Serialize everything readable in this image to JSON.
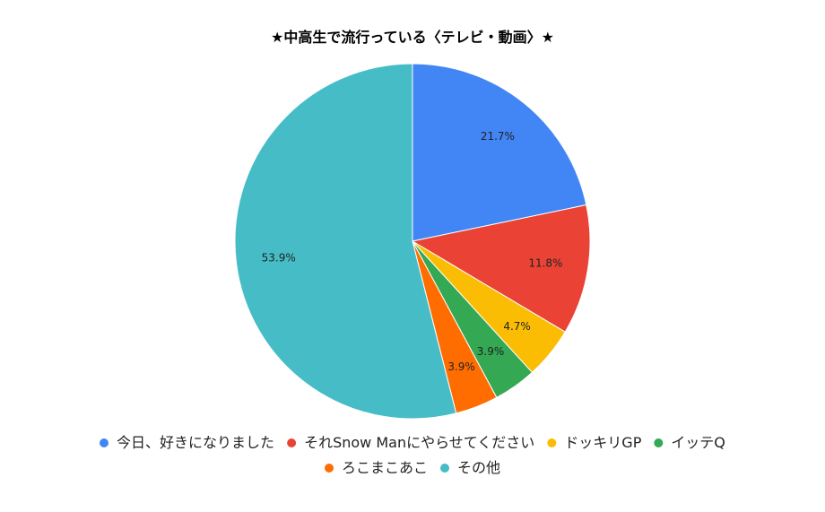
{
  "chart_data": {
    "type": "pie",
    "title": "★中高生で流行っている〈テレビ・動画〉★",
    "slices": [
      {
        "label": "今日、好きになりました",
        "value": 21.7,
        "display": "21.7%",
        "color": "#4285f4"
      },
      {
        "label": "それSnow Manにやらせてください",
        "value": 11.8,
        "display": "11.8%",
        "color": "#ea4335"
      },
      {
        "label": "ドッキリGP",
        "value": 4.7,
        "display": "4.7%",
        "color": "#fbbc04"
      },
      {
        "label": "イッテQ",
        "value": 3.9,
        "display": "3.9%",
        "color": "#34a853"
      },
      {
        "label": "ろこまこあこ",
        "value": 3.9,
        "display": "3.9%",
        "color": "#ff6d01"
      },
      {
        "label": "その他",
        "value": 53.9,
        "display": "53.9%",
        "color": "#46bdc6"
      }
    ],
    "legend_position": "bottom"
  }
}
